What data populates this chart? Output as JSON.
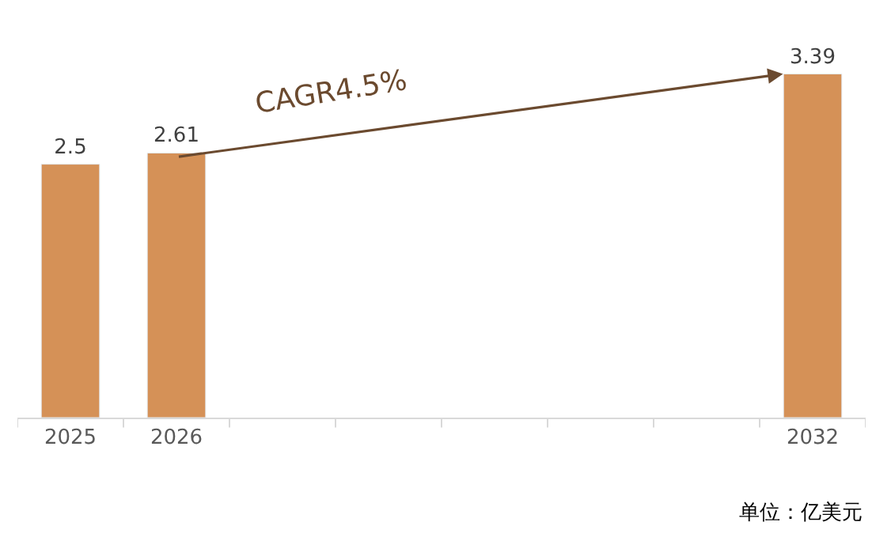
{
  "chart_data": {
    "type": "bar",
    "categories": [
      "2025",
      "2026",
      null,
      null,
      null,
      null,
      null,
      "2032"
    ],
    "values": [
      2.5,
      2.61,
      null,
      null,
      null,
      null,
      null,
      3.39
    ],
    "color": "#d59157",
    "data_labels": true,
    "annotations": [
      "CAGR4.5%",
      "单位：亿美元"
    ]
  }
}
